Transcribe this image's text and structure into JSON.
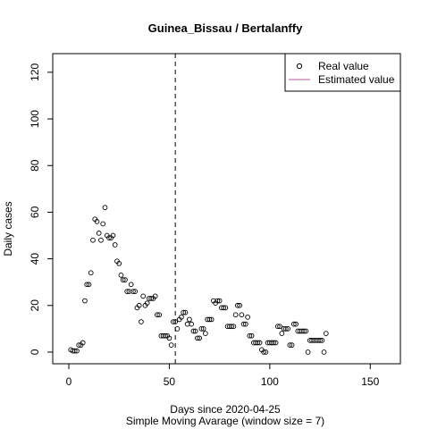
{
  "chart_data": {
    "type": "scatter",
    "title": "Guinea_Bissau / Bertalanffy",
    "xlabel": "Days since 2020-04-25",
    "xlabel2": "Simple Moving Avarage (window size = 7)",
    "ylabel": "Daily cases",
    "xlim": [
      -8,
      165
    ],
    "ylim": [
      -5,
      128
    ],
    "xticks": [
      0,
      50,
      100,
      150
    ],
    "yticks": [
      0,
      20,
      40,
      60,
      80,
      100,
      120
    ],
    "vline_x": 53,
    "legend": {
      "position": "top-right",
      "entries": [
        {
          "label": "Real value",
          "marker": "circle"
        },
        {
          "label": "Estimated value",
          "marker": "line",
          "color": "#b5589a"
        }
      ]
    },
    "series": [
      {
        "name": "Real value",
        "points": [
          [
            1,
            1
          ],
          [
            2,
            0.5
          ],
          [
            3,
            0.5
          ],
          [
            4,
            0.5
          ],
          [
            5,
            3
          ],
          [
            6,
            3
          ],
          [
            7,
            4
          ],
          [
            8,
            22
          ],
          [
            9,
            29
          ],
          [
            10,
            29
          ],
          [
            11,
            34
          ],
          [
            12,
            48
          ],
          [
            13,
            57
          ],
          [
            14,
            56
          ],
          [
            15,
            51
          ],
          [
            16,
            48
          ],
          [
            17,
            55
          ],
          [
            18,
            62
          ],
          [
            19,
            50
          ],
          [
            20,
            49
          ],
          [
            21,
            49
          ],
          [
            22,
            50
          ],
          [
            23,
            46
          ],
          [
            24,
            39
          ],
          [
            25,
            38
          ],
          [
            26,
            33
          ],
          [
            27,
            31
          ],
          [
            28,
            31
          ],
          [
            29,
            26
          ],
          [
            30,
            26
          ],
          [
            31,
            29
          ],
          [
            32,
            26
          ],
          [
            33,
            26
          ],
          [
            34,
            19
          ],
          [
            35,
            20
          ],
          [
            36,
            13
          ],
          [
            37,
            24
          ],
          [
            38,
            20
          ],
          [
            39,
            21
          ],
          [
            40,
            23
          ],
          [
            41,
            23
          ],
          [
            42,
            23
          ],
          [
            43,
            24
          ],
          [
            44,
            16
          ],
          [
            45,
            16
          ],
          [
            46,
            7
          ],
          [
            47,
            7
          ],
          [
            48,
            7
          ],
          [
            49,
            7
          ],
          [
            50,
            6
          ],
          [
            51,
            3
          ],
          [
            52,
            13
          ],
          [
            53,
            13
          ],
          [
            54,
            10
          ],
          [
            55,
            14
          ],
          [
            56,
            15
          ],
          [
            57,
            17
          ],
          [
            58,
            17
          ],
          [
            59,
            12
          ],
          [
            60,
            14
          ],
          [
            61,
            12
          ],
          [
            62,
            9
          ],
          [
            63,
            9
          ],
          [
            64,
            6
          ],
          [
            65,
            6
          ],
          [
            66,
            10
          ],
          [
            67,
            10
          ],
          [
            68,
            8
          ],
          [
            69,
            14
          ],
          [
            70,
            14
          ],
          [
            71,
            14
          ],
          [
            72,
            22
          ],
          [
            73,
            21
          ],
          [
            74,
            22
          ],
          [
            75,
            22
          ],
          [
            76,
            19
          ],
          [
            77,
            19
          ],
          [
            78,
            19
          ],
          [
            79,
            11
          ],
          [
            80,
            11
          ],
          [
            81,
            11
          ],
          [
            82,
            11
          ],
          [
            83,
            16
          ],
          [
            84,
            20
          ],
          [
            85,
            20
          ],
          [
            86,
            16
          ],
          [
            87,
            12
          ],
          [
            88,
            12
          ],
          [
            89,
            15
          ],
          [
            90,
            7
          ],
          [
            91,
            7
          ],
          [
            92,
            4
          ],
          [
            93,
            4
          ],
          [
            94,
            4
          ],
          [
            95,
            4
          ],
          [
            96,
            1
          ],
          [
            97,
            0
          ],
          [
            98,
            0
          ],
          [
            99,
            4
          ],
          [
            100,
            4
          ],
          [
            101,
            4
          ],
          [
            102,
            4
          ],
          [
            103,
            4
          ],
          [
            104,
            11
          ],
          [
            105,
            11
          ],
          [
            106,
            8
          ],
          [
            107,
            10
          ],
          [
            108,
            10
          ],
          [
            109,
            10
          ],
          [
            110,
            3
          ],
          [
            111,
            3
          ],
          [
            112,
            12
          ],
          [
            113,
            12
          ],
          [
            114,
            9
          ],
          [
            115,
            9
          ],
          [
            116,
            9
          ],
          [
            117,
            9
          ],
          [
            118,
            9
          ],
          [
            119,
            0
          ],
          [
            120,
            5
          ],
          [
            121,
            5
          ],
          [
            122,
            5
          ],
          [
            123,
            5
          ],
          [
            124,
            5
          ],
          [
            125,
            5
          ],
          [
            126,
            5
          ],
          [
            127,
            0
          ],
          [
            128,
            8
          ]
        ]
      }
    ]
  }
}
